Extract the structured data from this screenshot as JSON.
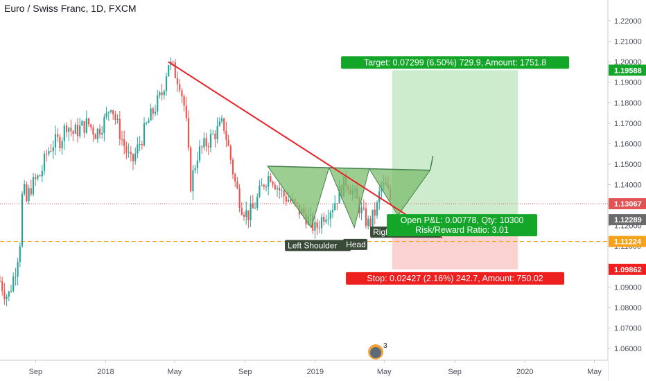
{
  "header": {
    "title": "Euro / Swiss Franc, 1D, FXCM"
  },
  "chart_data": {
    "type": "candlestick",
    "symbol": "EURCHF",
    "timeframe": "1D",
    "source": "FXCM",
    "x_ticks": [
      "Sep",
      "2018",
      "May",
      "Sep",
      "2019",
      "May",
      "Sep",
      "2020",
      "May"
    ],
    "y_ticks": [
      "1.22000",
      "1.21000",
      "1.20000",
      "1.19000",
      "1.18000",
      "1.17000",
      "1.16000",
      "1.15000",
      "1.14000",
      "1.13000",
      "1.12000",
      "1.11000",
      "1.10000",
      "1.09000",
      "1.08000",
      "1.07000",
      "1.06000"
    ],
    "ylim": [
      1.055,
      1.225
    ],
    "grid": false,
    "price_path": [
      [
        "2017-07-01",
        1.093
      ],
      [
        "2017-07-08",
        1.088
      ],
      [
        "2017-07-15",
        1.085
      ],
      [
        "2017-07-22",
        1.092
      ],
      [
        "2017-07-29",
        1.1
      ],
      [
        "2017-08-05",
        1.113
      ],
      [
        "2017-08-10",
        1.142
      ],
      [
        "2017-08-15",
        1.13
      ],
      [
        "2017-08-22",
        1.138
      ],
      [
        "2017-09-01",
        1.142
      ],
      [
        "2017-09-10",
        1.145
      ],
      [
        "2017-09-20",
        1.155
      ],
      [
        "2017-10-01",
        1.16
      ],
      [
        "2017-10-15",
        1.162
      ],
      [
        "2017-10-25",
        1.17
      ],
      [
        "2017-11-05",
        1.165
      ],
      [
        "2017-11-20",
        1.168
      ],
      [
        "2017-12-01",
        1.17
      ],
      [
        "2017-12-15",
        1.165
      ],
      [
        "2018-01-01",
        1.172
      ],
      [
        "2018-01-10",
        1.18
      ],
      [
        "2018-01-20",
        1.17
      ],
      [
        "2018-02-01",
        1.16
      ],
      [
        "2018-02-15",
        1.15
      ],
      [
        "2018-03-01",
        1.16
      ],
      [
        "2018-03-15",
        1.17
      ],
      [
        "2018-04-01",
        1.18
      ],
      [
        "2018-04-10",
        1.185
      ],
      [
        "2018-04-20",
        1.2
      ],
      [
        "2018-05-01",
        1.195
      ],
      [
        "2018-05-10",
        1.19
      ],
      [
        "2018-05-20",
        1.175
      ],
      [
        "2018-05-29",
        1.14
      ],
      [
        "2018-06-10",
        1.155
      ],
      [
        "2018-06-25",
        1.16
      ],
      [
        "2018-07-10",
        1.165
      ],
      [
        "2018-07-25",
        1.17
      ],
      [
        "2018-08-05",
        1.155
      ],
      [
        "2018-08-15",
        1.14
      ],
      [
        "2018-08-25",
        1.13
      ],
      [
        "2018-09-05",
        1.125
      ],
      [
        "2018-09-15",
        1.128
      ],
      [
        "2018-09-25",
        1.135
      ],
      [
        "2018-10-05",
        1.142
      ],
      [
        "2018-10-15",
        1.145
      ],
      [
        "2018-10-25",
        1.14
      ],
      [
        "2018-11-05",
        1.135
      ],
      [
        "2018-11-15",
        1.133
      ],
      [
        "2018-12-01",
        1.128
      ],
      [
        "2018-12-15",
        1.125
      ],
      [
        "2019-01-01",
        1.118
      ],
      [
        "2019-01-15",
        1.125
      ],
      [
        "2019-02-01",
        1.13
      ],
      [
        "2019-02-15",
        1.138
      ],
      [
        "2019-02-25",
        1.142
      ],
      [
        "2019-03-10",
        1.135
      ],
      [
        "2019-03-25",
        1.125
      ],
      [
        "2019-04-05",
        1.12
      ],
      [
        "2019-04-20",
        1.13
      ],
      [
        "2019-04-25",
        1.14
      ],
      [
        "2019-05-05",
        1.138
      ],
      [
        "2019-05-15",
        1.13
      ]
    ],
    "annotations": {
      "trendline_start": {
        "x": "2018-04-20",
        "y": 1.2
      },
      "trendline_end": {
        "x": "2019-08-10",
        "y": 1.114
      },
      "pattern_neckline_start": {
        "x": "2018-10-10",
        "y": 1.149
      },
      "pattern_neckline_end": {
        "x": "2019-07-20",
        "y": 1.147
      },
      "projection_peak": {
        "x": "2019-07-25",
        "y": 1.154
      },
      "labels": {
        "left_shoulder": "Left Shoulder",
        "head": "Head",
        "right_shoulder": "Right Shoulder"
      }
    },
    "position": {
      "entry": 1.12289,
      "target": 1.19588,
      "stop": 1.09862,
      "current": 1.13067,
      "orange_level": 1.11224,
      "start_date": "2019-05-15",
      "end_date": "2019-12-20",
      "target_label": "Target: 0.07299 (6.50%) 729.9, Amount: 1751.8",
      "pnl_label": "Open P&L: 0.00778, Qty: 10300",
      "rr_label": "Risk/Reward Ratio: 3.01",
      "stop_label": "Stop: 0.02427 (2.16%) 242.7, Amount: 750.02"
    },
    "price_labels": {
      "target": "1.19588",
      "current": "1.13067",
      "entry": "1.12289",
      "orange": "1.11224",
      "stop": "1.09862"
    },
    "badge_count": "3",
    "colors": {
      "bull": "#26a69a",
      "bear": "#ef5350",
      "trend": "#e82127",
      "target_fill": "#cdeccd",
      "stop_fill": "#fbd2d2",
      "target_label_bg": "#14a629",
      "stop_label_bg": "#ee1f1f",
      "current_line": "#e25454",
      "orange": "#f7a21b",
      "pattern_fill": "#7bbd6e",
      "pattern_stroke": "#46804d",
      "label_bg": "#3a4a39"
    }
  }
}
